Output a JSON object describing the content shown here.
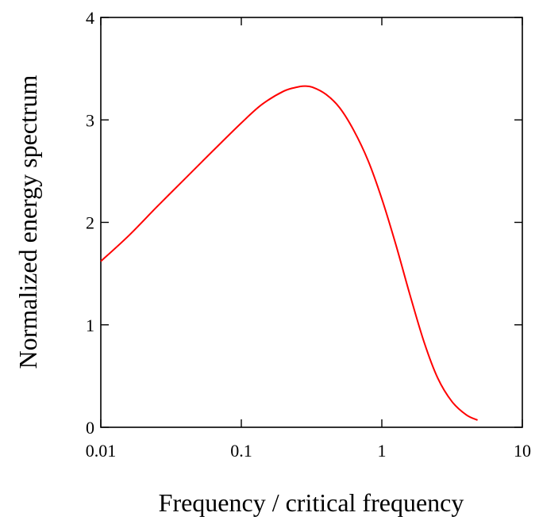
{
  "chart_data": {
    "type": "line",
    "title": "",
    "xlabel": "Frequency / critical frequency",
    "ylabel": "Normalized energy spectrum",
    "xscale": "log",
    "xlim": [
      0.01,
      10
    ],
    "ylim": [
      0,
      4
    ],
    "xticks": [
      0.01,
      0.1,
      1,
      10
    ],
    "xtick_labels": [
      "0.01",
      "0.1",
      "1",
      "10"
    ],
    "yticks": [
      0,
      1,
      2,
      3,
      4
    ],
    "ytick_labels": [
      "0",
      "1",
      "2",
      "3",
      "4"
    ],
    "grid": false,
    "legend": "none",
    "series": [
      {
        "color": "#ff0000",
        "x": [
          0.01,
          0.0158,
          0.025,
          0.04,
          0.063,
          0.1,
          0.14,
          0.2,
          0.25,
          0.28,
          0.32,
          0.4,
          0.5,
          0.63,
          0.8,
          1.0,
          1.26,
          1.58,
          2.0,
          2.5,
          3.16,
          4.0,
          4.8
        ],
        "y": [
          1.62,
          1.87,
          2.15,
          2.43,
          2.7,
          2.97,
          3.15,
          3.28,
          3.32,
          3.33,
          3.32,
          3.25,
          3.12,
          2.9,
          2.6,
          2.23,
          1.78,
          1.3,
          0.83,
          0.48,
          0.25,
          0.12,
          0.07
        ]
      }
    ]
  }
}
